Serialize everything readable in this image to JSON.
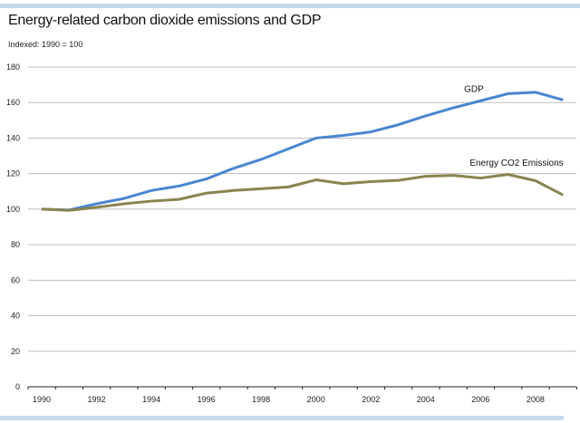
{
  "chart_data": {
    "type": "line",
    "title": "Energy-related carbon dioxide emissions and GDP",
    "subtitle": "Indexed: 1990 = 100",
    "xlabel": "",
    "ylabel": "",
    "x": [
      1990,
      1991,
      1992,
      1993,
      1994,
      1995,
      1996,
      1997,
      1998,
      1999,
      2000,
      2001,
      2002,
      2003,
      2004,
      2005,
      2006,
      2007,
      2008,
      2009
    ],
    "x_tick_labels": [
      "1990",
      "1992",
      "1994",
      "1996",
      "1998",
      "2000",
      "2002",
      "2004",
      "2006",
      "2008"
    ],
    "y_tick_labels": [
      "0",
      "20",
      "40",
      "60",
      "80",
      "100",
      "120",
      "140",
      "160",
      "180"
    ],
    "ylim": [
      0,
      180
    ],
    "grid": true,
    "series": [
      {
        "name": "GDP",
        "color": "#4a86d0",
        "values": [
          100,
          99.5,
          103,
          106,
          110.5,
          113,
          117,
          123,
          128,
          134,
          140,
          141.5,
          143.5,
          147.5,
          152.5,
          157,
          161,
          165,
          165.8,
          161.5
        ]
      },
      {
        "name": "Energy CO2 Emissions",
        "color": "#8a8450",
        "values": [
          100,
          99.3,
          101,
          103,
          104.5,
          105.5,
          109,
          110.5,
          111.5,
          112.5,
          116.5,
          114.3,
          115.5,
          116.2,
          118.5,
          119,
          117.5,
          119.5,
          116,
          108
        ]
      }
    ]
  }
}
